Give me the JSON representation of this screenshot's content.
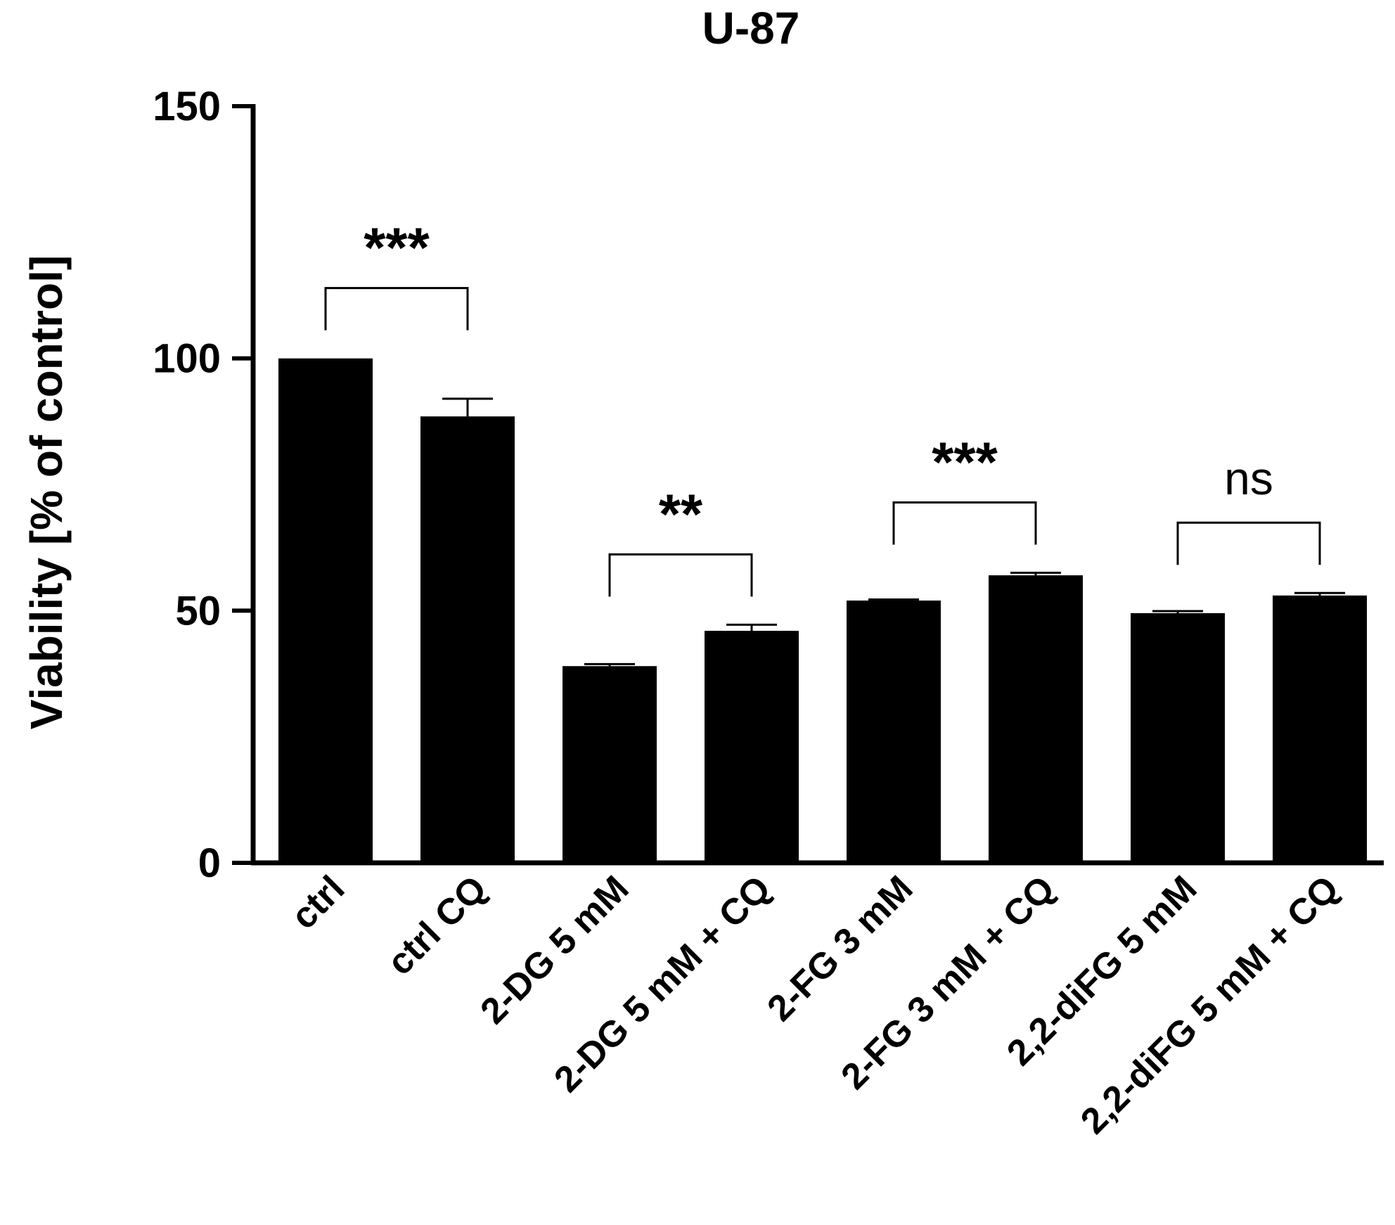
{
  "chart_data": {
    "type": "bar",
    "title": "U-87",
    "ylabel": "Viability [% of control]",
    "xlabel": "",
    "ylim": [
      0,
      150
    ],
    "yticks": [
      0,
      50,
      100,
      150
    ],
    "categories": [
      "ctrl",
      "ctrl CQ",
      "2-DG 5 mM",
      "2-DG 5 mM + CQ",
      "2-FG 3 mM",
      "2-FG 3 mM + CQ",
      "2,2-diFG 5 mM",
      "2,2-diFG 5 mM + CQ"
    ],
    "values": [
      100,
      88.5,
      39,
      46,
      52,
      57,
      49.5,
      53
    ],
    "errors": [
      0,
      3.5,
      0.4,
      1.2,
      0.2,
      0.5,
      0.4,
      0.5
    ],
    "bar_color": "#000000",
    "comparisons": [
      {
        "from": 0,
        "to": 1,
        "label": "***"
      },
      {
        "from": 2,
        "to": 3,
        "label": "**"
      },
      {
        "from": 4,
        "to": 5,
        "label": "***"
      },
      {
        "from": 6,
        "to": 7,
        "label": "ns"
      }
    ]
  }
}
